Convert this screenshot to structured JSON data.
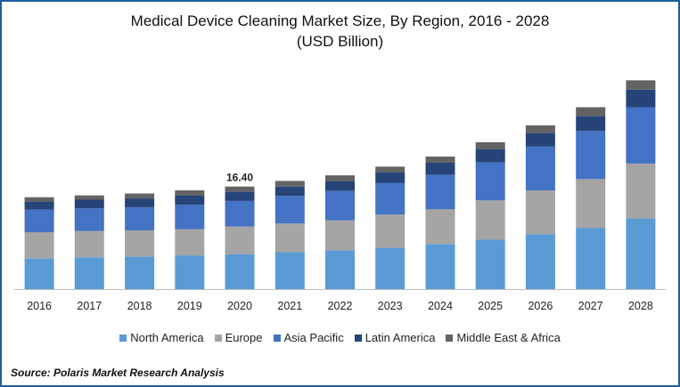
{
  "chart_data": {
    "type": "bar",
    "stacked": true,
    "title": "Medical Device Cleaning Market Size, By Region, 2016 - 2028",
    "subtitle": "(USD Billion)",
    "xlabel": "",
    "ylabel": "",
    "categories": [
      "2016",
      "2017",
      "2018",
      "2019",
      "2020",
      "2021",
      "2022",
      "2023",
      "2024",
      "2025",
      "2026",
      "2027",
      "2028"
    ],
    "series": [
      {
        "name": "North America",
        "color": "#5b9bd5",
        "values": [
          4.9,
          5.1,
          5.2,
          5.4,
          5.6,
          5.9,
          6.2,
          6.6,
          7.2,
          7.9,
          8.8,
          9.8,
          11.3
        ]
      },
      {
        "name": "Europe",
        "color": "#a5a5a5",
        "values": [
          4.2,
          4.2,
          4.2,
          4.2,
          4.4,
          4.6,
          4.8,
          5.3,
          5.6,
          6.3,
          7.0,
          7.8,
          8.8
        ]
      },
      {
        "name": "Asia Pacific",
        "color": "#4472c4",
        "values": [
          3.6,
          3.6,
          3.7,
          3.9,
          4.1,
          4.4,
          4.7,
          5.1,
          5.5,
          6.1,
          7.0,
          7.7,
          9.0
        ]
      },
      {
        "name": "Latin America",
        "color": "#264478",
        "values": [
          1.3,
          1.4,
          1.4,
          1.5,
          1.5,
          1.5,
          1.6,
          1.7,
          1.9,
          2.1,
          2.2,
          2.4,
          2.8
        ]
      },
      {
        "name": "Middle East & Africa",
        "color": "#636363",
        "values": [
          0.7,
          0.7,
          0.8,
          0.8,
          0.8,
          0.9,
          0.9,
          0.9,
          1.0,
          1.1,
          1.2,
          1.4,
          1.5
        ]
      }
    ],
    "annotations": [
      {
        "category": "2020",
        "label": "16.40"
      }
    ],
    "ylim": [
      0,
      36
    ],
    "grid": false,
    "legend_position": "bottom"
  },
  "source": "Source: Polaris  Market Research Analysis"
}
